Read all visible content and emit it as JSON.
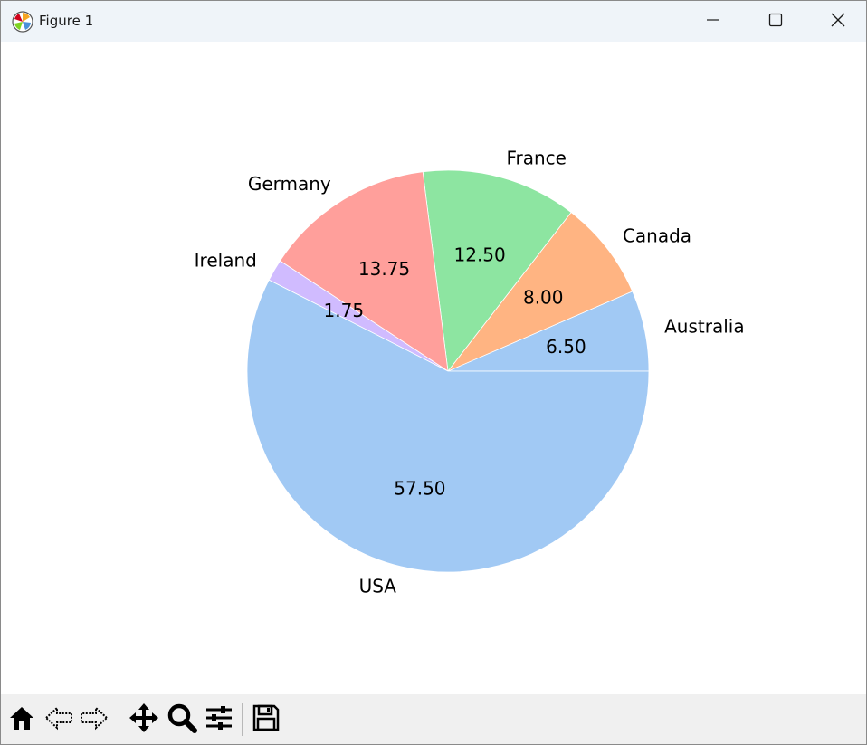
{
  "window": {
    "title": "Figure 1",
    "icons": {
      "app": "matplotlib-logo-icon",
      "minimize": "minimize-icon",
      "maximize": "maximize-icon",
      "close": "close-icon"
    }
  },
  "toolbar": {
    "tools": [
      "home-icon",
      "back-arrow-icon",
      "forward-arrow-icon",
      "pan-move-icon",
      "zoom-magnifier-icon",
      "configure-subplots-icon",
      "save-floppy-icon"
    ]
  },
  "chart_data": {
    "type": "pie",
    "labels": [
      "Australia",
      "Canada",
      "France",
      "Germany",
      "Ireland",
      "USA"
    ],
    "values": [
      6.5,
      8.0,
      12.5,
      13.75,
      1.75,
      57.5
    ],
    "value_labels": [
      "6.50",
      "8.00",
      "12.50",
      "13.75",
      "1.75",
      "57.50"
    ],
    "colors": [
      "#a1c9f4",
      "#ffb482",
      "#8de5a1",
      "#ff9f9b",
      "#d0bbff",
      "#a1c9f4"
    ],
    "start_angle_deg": 0,
    "direction": "counterclockwise",
    "title": "",
    "legend": "none"
  }
}
